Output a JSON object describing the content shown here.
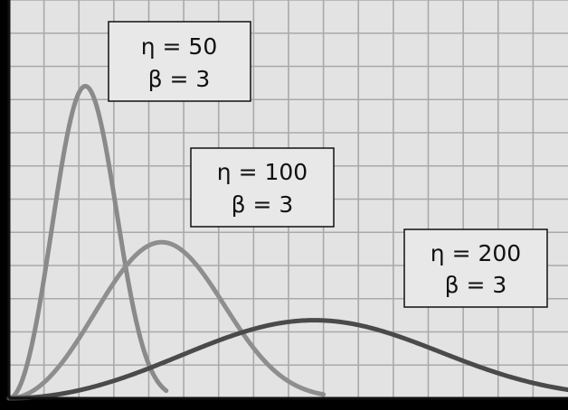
{
  "chart_data": {
    "type": "line",
    "x_range": [
      0,
      320
    ],
    "y_range": [
      0,
      0.03
    ],
    "grid": true,
    "series": [
      {
        "color": "#8a8a8a",
        "label_line1": "η = 50",
        "label_line2": "β = 3",
        "eta": 50,
        "beta": 3
      },
      {
        "color": "#8e8e8e",
        "label_line1": "η = 100",
        "label_line2": "β = 3",
        "eta": 100,
        "beta": 3
      },
      {
        "color": "#4a4a4a",
        "label_line1": "η = 200",
        "label_line2": "β = 3",
        "eta": 200,
        "beta": 3
      }
    ]
  }
}
